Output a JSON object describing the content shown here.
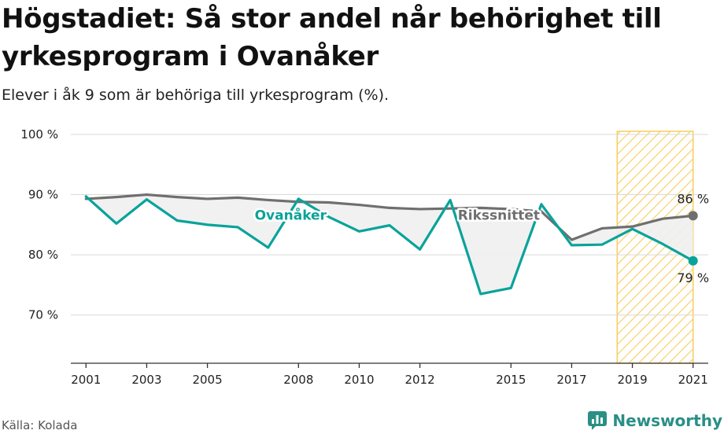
{
  "title": "Högstadiet: Så stor andel når behörighet till yrkesprogram i Ovanåker",
  "subtitle": "Elever i åk 9 som är behöriga till yrkesprogram (%).",
  "source": "Källa: Kolada",
  "brand": "Newsworthy",
  "colors": {
    "ovanaker": "#0aa39a",
    "riks": "#6f6f6f",
    "highlight": "#f5c543",
    "area": "#f0f0f0"
  },
  "chart_data": {
    "type": "line",
    "xlim": [
      2000.5,
      2021.5
    ],
    "ylim": [
      62,
      103
    ],
    "x_ticks": [
      2001,
      2003,
      2005,
      2008,
      2010,
      2012,
      2015,
      2017,
      2019,
      2021
    ],
    "y_ticks": [
      70,
      80,
      90,
      100
    ],
    "y_tick_labels": [
      "70 %",
      "80 %",
      "90 %",
      "100 %"
    ],
    "highlight_range": [
      2018.5,
      2021
    ],
    "x": [
      2001,
      2002,
      2003,
      2004,
      2005,
      2006,
      2007,
      2008,
      2009,
      2010,
      2011,
      2012,
      2013,
      2014,
      2015,
      2016,
      2017,
      2018,
      2019,
      2020,
      2021
    ],
    "series": [
      {
        "key": "ovanaker",
        "name": "Ovanåker",
        "values": [
          89.7,
          85.2,
          89.2,
          85.7,
          85.0,
          84.6,
          81.2,
          89.3,
          86.3,
          83.9,
          84.9,
          80.9,
          89.1,
          73.5,
          74.5,
          88.4,
          81.6,
          81.7,
          84.3,
          81.8,
          79.0
        ],
        "end_label": "79 %"
      },
      {
        "key": "riks",
        "name": "Rikssnittet",
        "values": [
          89.3,
          89.6,
          90.0,
          89.6,
          89.3,
          89.5,
          89.1,
          88.8,
          88.7,
          88.3,
          87.8,
          87.6,
          87.7,
          87.8,
          87.6,
          87.2,
          82.5,
          84.4,
          84.7,
          86.0,
          86.5
        ],
        "end_label": "86 %"
      }
    ]
  }
}
